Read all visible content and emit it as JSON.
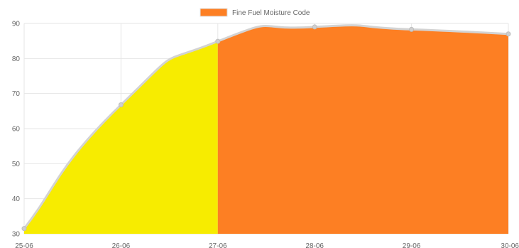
{
  "chart_data": {
    "type": "area",
    "title": "",
    "xlabel": "",
    "ylabel": "",
    "categories": [
      "25-06",
      "26-06",
      "27-06",
      "28-06",
      "29-06",
      "30-06"
    ],
    "series": [
      {
        "name": "Fine Fuel Moisture Code",
        "values": [
          31.5,
          66.8,
          84.9,
          89.0,
          88.3,
          87.0
        ]
      }
    ],
    "ylim": [
      30,
      90
    ],
    "yticks": [
      30,
      40,
      50,
      60,
      70,
      80,
      90
    ],
    "grid": true,
    "legend_position": "top-center",
    "fill_segments": [
      {
        "from": "25-06",
        "to": "27-06",
        "color": "#f7ec00"
      },
      {
        "from": "27-06",
        "to": "30-06",
        "color": "#fd7f23"
      }
    ],
    "colors": {
      "line": "#d3d3d3",
      "legend_swatch": "#fd7f23",
      "grid": "#e6e6e6",
      "tick_text": "#666666"
    }
  }
}
